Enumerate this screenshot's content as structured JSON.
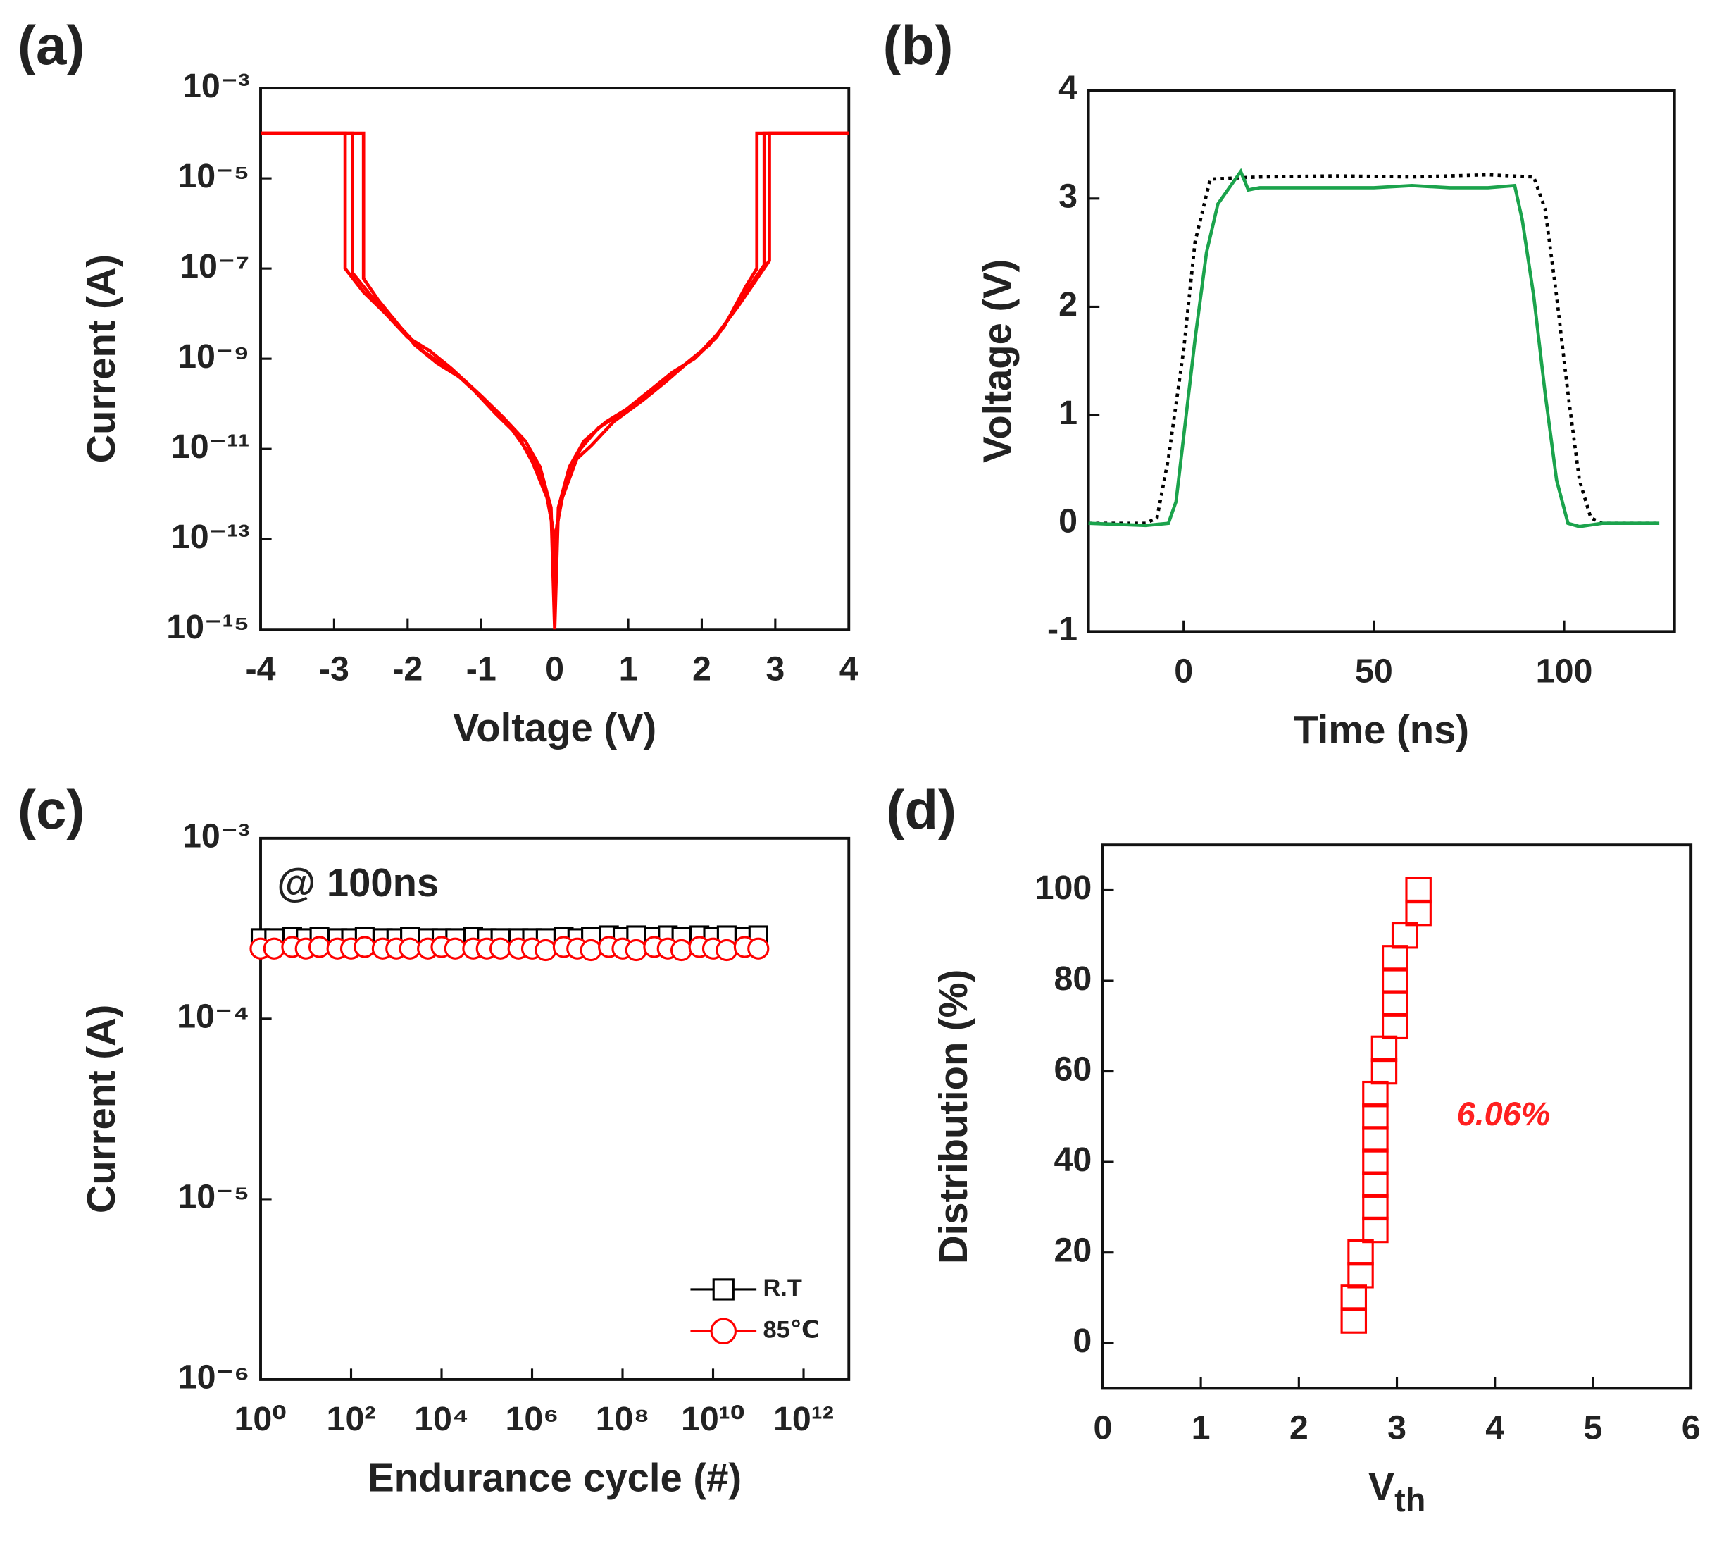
{
  "chart_data": [
    {
      "type": "line",
      "panel_label": "(a)",
      "x_label": "Voltage (V)",
      "y_label": "Current (A)",
      "log_y": true,
      "xlim": [
        -4,
        4
      ],
      "ylim": [
        1e-15,
        0.001
      ],
      "xticks": [
        -4,
        -3,
        -2,
        -1,
        0,
        1,
        2,
        3,
        4
      ],
      "yticks": [
        {
          "value": 0.001,
          "label": "10⁻³"
        },
        {
          "value": 1e-05,
          "label": "10⁻⁵"
        },
        {
          "value": 1e-07,
          "label": "10⁻⁷"
        },
        {
          "value": 1e-09,
          "label": "10⁻⁹"
        },
        {
          "value": 1e-11,
          "label": "10⁻¹¹"
        },
        {
          "value": 1e-13,
          "label": "10⁻¹³"
        },
        {
          "value": 1e-15,
          "label": "10⁻¹⁵"
        }
      ],
      "series": [
        {
          "color": "#ff0000",
          "x": [
            -4,
            -2.85,
            -2.85,
            -2.6,
            -2.3,
            -2,
            -1.7,
            -1.4,
            -1,
            -0.7,
            -0.4,
            -0.2,
            -0.05,
            0,
            0.05,
            0.2,
            0.4,
            0.7,
            1,
            1.4,
            1.7,
            2,
            2.3,
            2.6,
            2.75,
            2.75,
            4
          ],
          "values": [
            0.0001,
            0.0001,
            1e-07,
            3e-08,
            1e-08,
            3e-09,
            1.5e-09,
            6e-10,
            1.5e-10,
            5e-11,
            1.5e-11,
            4e-12,
            5e-13,
            1e-15,
            5e-13,
            4e-12,
            1.5e-11,
            4e-11,
            8e-11,
            2.5e-10,
            6e-10,
            1.5e-09,
            5e-09,
            4e-08,
            1e-07,
            0.0001,
            0.0001
          ]
        },
        {
          "color": "#ff0000",
          "x": [
            -4,
            -2.75,
            -2.75,
            -2.5,
            -2.2,
            -1.9,
            -1.6,
            -1.3,
            -0.9,
            -0.6,
            -0.35,
            -0.15,
            -0.03,
            0,
            0.03,
            0.15,
            0.35,
            0.6,
            0.9,
            1.3,
            1.6,
            1.9,
            2.2,
            2.6,
            2.85,
            2.85,
            4
          ],
          "values": [
            0.0001,
            0.0001,
            8e-08,
            2.5e-08,
            8e-09,
            2e-09,
            8e-10,
            4e-10,
            1e-10,
            3e-11,
            8e-12,
            2e-12,
            2e-13,
            1e-14,
            2e-13,
            2e-12,
            1e-11,
            3e-11,
            6e-11,
            2e-10,
            5e-10,
            1e-09,
            3e-09,
            3e-08,
            1.2e-07,
            0.0001,
            0.0001
          ]
        },
        {
          "color": "#ff0000",
          "x": [
            -4,
            -2.6,
            -2.6,
            -2.4,
            -2.1,
            -1.8,
            -1.5,
            -1.2,
            -0.8,
            -0.5,
            -0.3,
            -0.1,
            0,
            0.1,
            0.3,
            0.5,
            0.8,
            1.2,
            1.5,
            1.8,
            2.1,
            2.5,
            2.92,
            2.92,
            4
          ],
          "values": [
            0.0001,
            0.0001,
            6e-08,
            2e-08,
            5e-09,
            1.5e-09,
            7e-10,
            3e-10,
            6e-11,
            2e-11,
            5e-12,
            8e-13,
            1e-13,
            8e-13,
            6e-12,
            1.2e-11,
            4e-11,
            1.2e-10,
            3e-10,
            8e-10,
            2e-09,
            1.5e-08,
            1.5e-07,
            0.0001,
            0.0001
          ]
        }
      ]
    },
    {
      "type": "line",
      "panel_label": "(b)",
      "x_label": "Time (ns)",
      "y_label": "Voltage (V)",
      "xlim": [
        -25,
        129
      ],
      "ylim": [
        -1,
        4
      ],
      "xticks": [
        0,
        50,
        100
      ],
      "yticks": [
        -1,
        0,
        1,
        2,
        3,
        4
      ],
      "series": [
        {
          "color": "#000000",
          "style": "dotted",
          "x": [
            -25,
            -10,
            -7,
            -4,
            0,
            3,
            7,
            20,
            40,
            60,
            80,
            92,
            95,
            98,
            101,
            104,
            107,
            110,
            125
          ],
          "values": [
            0,
            0,
            0.05,
            0.6,
            1.6,
            2.6,
            3.18,
            3.2,
            3.21,
            3.2,
            3.22,
            3.2,
            2.9,
            2.1,
            1.2,
            0.4,
            0.05,
            0,
            0
          ]
        },
        {
          "color": "#1ba34c",
          "x": [
            -25,
            -10,
            -4,
            -2,
            0,
            3,
            6,
            9,
            12,
            15,
            17,
            20,
            30,
            50,
            60,
            70,
            80,
            87,
            89,
            92,
            95,
            98,
            101,
            104,
            110,
            125
          ],
          "values": [
            0,
            -0.02,
            0,
            0.2,
            0.8,
            1.7,
            2.5,
            2.95,
            3.1,
            3.25,
            3.08,
            3.1,
            3.1,
            3.1,
            3.12,
            3.1,
            3.1,
            3.12,
            2.8,
            2.1,
            1.2,
            0.4,
            0,
            -0.03,
            0,
            0
          ]
        }
      ]
    },
    {
      "type": "scatter",
      "panel_label": "(c)",
      "x_label": "Endurance cycle (#)",
      "y_label": "Current (A)",
      "log_x": true,
      "log_y": true,
      "xlim": [
        1,
        10000000000000.0
      ],
      "ylim": [
        1e-06,
        0.001
      ],
      "xticks": [
        {
          "value": 1,
          "label": "10⁰"
        },
        {
          "value": 100,
          "label": "10²"
        },
        {
          "value": 10000,
          "label": "10⁴"
        },
        {
          "value": 1000000,
          "label": "10⁶"
        },
        {
          "value": 100000000,
          "label": "10⁸"
        },
        {
          "value": 10000000000,
          "label": "10¹⁰"
        },
        {
          "value": 1000000000000,
          "label": "10¹²"
        }
      ],
      "yticks": [
        {
          "value": 0.001,
          "label": "10⁻³"
        },
        {
          "value": 0.0001,
          "label": "10⁻⁴"
        },
        {
          "value": 1e-05,
          "label": "10⁻⁵"
        },
        {
          "value": 1e-06,
          "label": "10⁻⁶"
        }
      ],
      "legend": "lower right",
      "annotation": "@ 100ns",
      "x": [
        1,
        2,
        5,
        10,
        20,
        50,
        100,
        200,
        500,
        1000,
        2000,
        5000,
        10000,
        20000,
        50000,
        100000,
        200000,
        500000,
        1000000,
        2000000,
        5000000,
        10000000,
        20000000,
        50000000,
        100000000,
        200000000,
        500000000,
        1000000000,
        2000000000,
        5000000000,
        10000000000,
        20000000000,
        50000000000,
        100000000000
      ],
      "series": [
        {
          "name": "R.T",
          "color": "#000000",
          "marker": "square",
          "values": [
            0.00028,
            0.00028,
            0.000285,
            0.00028,
            0.000285,
            0.00028,
            0.00028,
            0.000285,
            0.00028,
            0.00028,
            0.000285,
            0.00028,
            0.00028,
            0.00028,
            0.000285,
            0.00028,
            0.00028,
            0.00028,
            0.00028,
            0.00028,
            0.000285,
            0.00028,
            0.000285,
            0.00029,
            0.000285,
            0.00029,
            0.000285,
            0.00029,
            0.000285,
            0.00029,
            0.000285,
            0.00029,
            0.000285,
            0.00029
          ]
        },
        {
          "name": "85℃",
          "color": "#ff0000",
          "marker": "circle",
          "values": [
            0.000245,
            0.000245,
            0.00025,
            0.000245,
            0.00025,
            0.000245,
            0.000245,
            0.00025,
            0.000245,
            0.000245,
            0.000245,
            0.000245,
            0.00025,
            0.000245,
            0.000245,
            0.000245,
            0.000245,
            0.000245,
            0.000245,
            0.00024,
            0.00025,
            0.000245,
            0.00024,
            0.00025,
            0.000245,
            0.00024,
            0.00025,
            0.000245,
            0.00024,
            0.00025,
            0.000245,
            0.00024,
            0.00025,
            0.000245
          ]
        }
      ]
    },
    {
      "type": "scatter",
      "panel_label": "(d)",
      "x_label": "V",
      "x_label_sub": "th",
      "y_label": "Distribution (%)",
      "xlim": [
        0,
        6
      ],
      "ylim": [
        -10,
        110
      ],
      "xticks": [
        0,
        1,
        2,
        3,
        4,
        5,
        6
      ],
      "yticks": [
        0,
        20,
        40,
        60,
        80,
        100
      ],
      "annotation": "6.06%",
      "annotation_color": "#ff2020",
      "series": [
        {
          "color": "#ff0000",
          "marker": "square",
          "x": [
            2.56,
            2.56,
            2.63,
            2.63,
            2.78,
            2.78,
            2.78,
            2.78,
            2.78,
            2.78,
            2.78,
            2.87,
            2.87,
            2.98,
            2.98,
            2.98,
            2.98,
            3.08,
            3.22,
            3.22
          ],
          "values": [
            5,
            10,
            15,
            20,
            25,
            30,
            35,
            40,
            45,
            50,
            55,
            60,
            65,
            70,
            75,
            80,
            85,
            90,
            95,
            100
          ]
        }
      ]
    }
  ]
}
